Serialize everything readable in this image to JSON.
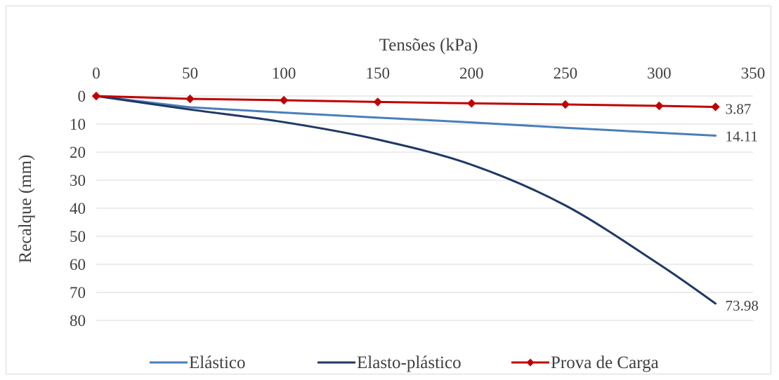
{
  "chart_data": {
    "type": "line",
    "title": "",
    "xlabel": "Tensões (kPa)",
    "ylabel": "Recalque (mm)",
    "x_axis_position": "top",
    "y_axis_inverted": true,
    "xlim": [
      0,
      350
    ],
    "ylim": [
      0,
      80
    ],
    "xticks": [
      "0",
      "50",
      "100",
      "150",
      "200",
      "250",
      "300",
      "350"
    ],
    "yticks": [
      "0",
      "10",
      "20",
      "30",
      "40",
      "50",
      "60",
      "70",
      "80"
    ],
    "grid": "horizontal",
    "legend": "bottom",
    "series": [
      {
        "name": "Elástico",
        "color": "#4a7ebb",
        "markers": false,
        "smooth": false,
        "x": [
          0,
          50,
          100,
          150,
          200,
          250,
          300,
          330
        ],
        "y": [
          0,
          4.0,
          5.9,
          7.7,
          9.4,
          11.3,
          13.1,
          14.11
        ],
        "end_label": "14.11"
      },
      {
        "name": "Elasto-plástico",
        "color": "#1f3864",
        "markers": false,
        "smooth": true,
        "x": [
          0,
          50,
          100,
          150,
          200,
          250,
          300,
          330
        ],
        "y": [
          0,
          4.8,
          9.3,
          15.5,
          24.5,
          39.0,
          60.0,
          73.98
        ],
        "end_label": "73.98"
      },
      {
        "name": "Prova de Carga",
        "color": "#c00000",
        "markers": true,
        "marker_shape": "diamond",
        "smooth": false,
        "x": [
          0,
          50,
          100,
          150,
          200,
          250,
          300,
          330
        ],
        "y": [
          0,
          1.0,
          1.5,
          2.1,
          2.6,
          3.0,
          3.5,
          3.87
        ],
        "end_label": "3.87"
      }
    ]
  }
}
